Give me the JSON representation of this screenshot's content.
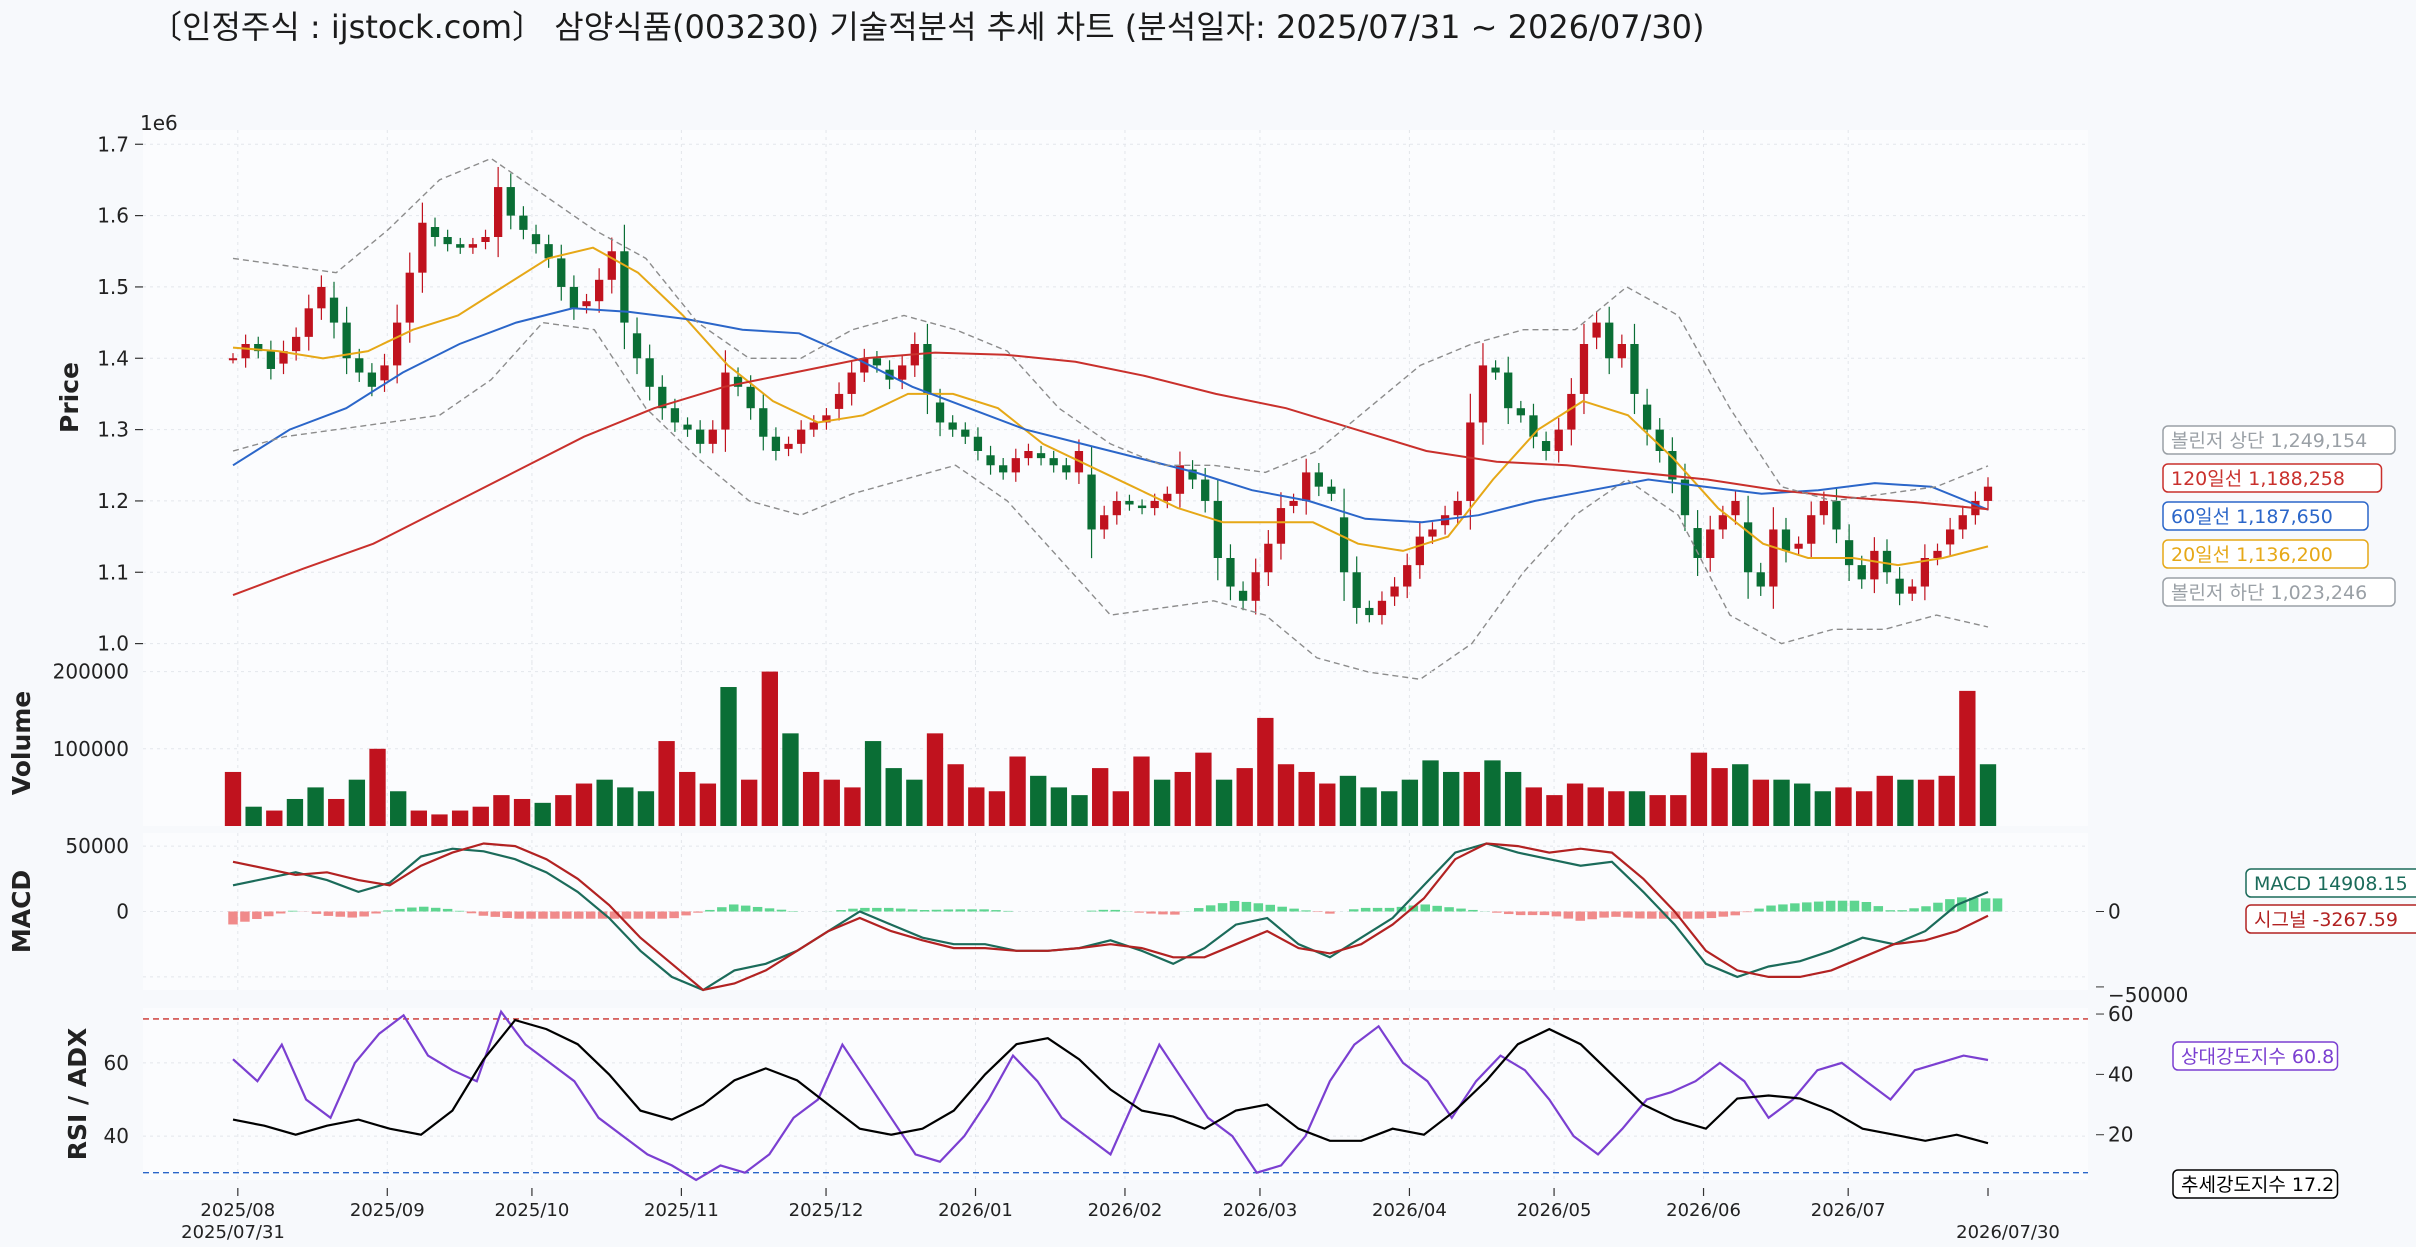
{
  "title": "〔인정주식 : ijstock.com〕 삼양식품(003230) 기술적분석 추세 차트 (분석일자: 2025/07/31 ~ 2026/07/30)",
  "chart_data": [
    {
      "type": "candlestick",
      "name": "price",
      "ylabel": "Price",
      "scale_note": "1e6",
      "ylim": [
        970000,
        1720000
      ],
      "yticks": [
        {
          "v": 1000000,
          "label": "1.0"
        },
        {
          "v": 1100000,
          "label": "1.1"
        },
        {
          "v": 1200000,
          "label": "1.2"
        },
        {
          "v": 1300000,
          "label": "1.3"
        },
        {
          "v": 1400000,
          "label": "1.4"
        },
        {
          "v": 1500000,
          "label": "1.5"
        },
        {
          "v": 1600000,
          "label": "1.6"
        },
        {
          "v": 1700000,
          "label": "1.7"
        }
      ],
      "x_range": [
        "2025-07-31",
        "2026-07-30"
      ],
      "x_ticks": [
        {
          "date": "2025-08-01",
          "label": "2025/08"
        },
        {
          "date": "2025-09-01",
          "label": "2025/09"
        },
        {
          "date": "2025-10-01",
          "label": "2025/10"
        },
        {
          "date": "2025-11-01",
          "label": "2025/11"
        },
        {
          "date": "2025-12-01",
          "label": "2025/12"
        },
        {
          "date": "2026-01-01",
          "label": "2026/01"
        },
        {
          "date": "2026-02-01",
          "label": "2026/02"
        },
        {
          "date": "2026-03-01",
          "label": "2026/03"
        },
        {
          "date": "2026-04-01",
          "label": "2026/04"
        },
        {
          "date": "2026-05-01",
          "label": "2026/05"
        },
        {
          "date": "2026-06-01",
          "label": "2026/06"
        },
        {
          "date": "2026-07-01",
          "label": "2026/07"
        }
      ],
      "x_edge_labels": {
        "start": "2025/07/31",
        "end": "2026/07/30"
      },
      "close": [
        1400000,
        1420000,
        1410000,
        1385000,
        1410000,
        1430000,
        1470000,
        1500000,
        1450000,
        1400000,
        1380000,
        1360000,
        1390000,
        1450000,
        1520000,
        1590000,
        1570000,
        1560000,
        1555000,
        1560000,
        1570000,
        1640000,
        1600000,
        1580000,
        1560000,
        1540000,
        1500000,
        1470000,
        1480000,
        1510000,
        1550000,
        1450000,
        1400000,
        1360000,
        1330000,
        1310000,
        1300000,
        1280000,
        1300000,
        1380000,
        1360000,
        1330000,
        1290000,
        1270000,
        1280000,
        1300000,
        1310000,
        1320000,
        1350000,
        1380000,
        1400000,
        1390000,
        1370000,
        1390000,
        1420000,
        1350000,
        1310000,
        1300000,
        1290000,
        1270000,
        1250000,
        1240000,
        1260000,
        1270000,
        1260000,
        1250000,
        1240000,
        1270000,
        1160000,
        1180000,
        1200000,
        1195000,
        1190000,
        1200000,
        1210000,
        1250000,
        1230000,
        1200000,
        1120000,
        1080000,
        1060000,
        1100000,
        1140000,
        1190000,
        1200000,
        1240000,
        1220000,
        1210000,
        1100000,
        1050000,
        1040000,
        1060000,
        1080000,
        1110000,
        1150000,
        1160000,
        1180000,
        1200000,
        1310000,
        1390000,
        1380000,
        1330000,
        1320000,
        1290000,
        1270000,
        1300000,
        1350000,
        1420000,
        1450000,
        1400000,
        1420000,
        1350000,
        1300000,
        1270000,
        1230000,
        1180000,
        1120000,
        1160000,
        1180000,
        1200000,
        1100000,
        1080000,
        1160000,
        1130000,
        1140000,
        1180000,
        1200000,
        1160000,
        1110000,
        1090000,
        1130000,
        1100000,
        1070000,
        1080000,
        1120000,
        1130000,
        1160000,
        1180000,
        1200000,
        1220000
      ],
      "series": [
        {
          "name": "20일선",
          "color": "#e6a817",
          "values": [
            1415000,
            1410000,
            1400000,
            1410000,
            1440000,
            1460000,
            1500000,
            1540000,
            1555000,
            1520000,
            1460000,
            1390000,
            1340000,
            1310000,
            1320000,
            1350000,
            1350000,
            1330000,
            1280000,
            1250000,
            1220000,
            1190000,
            1170000,
            1170000,
            1170000,
            1140000,
            1130000,
            1150000,
            1230000,
            1300000,
            1340000,
            1320000,
            1260000,
            1190000,
            1140000,
            1120000,
            1120000,
            1110000,
            1120000,
            1136200
          ]
        },
        {
          "name": "60일선",
          "color": "#2b66c9",
          "values": [
            1250000,
            1300000,
            1330000,
            1380000,
            1420000,
            1450000,
            1470000,
            1465000,
            1455000,
            1440000,
            1435000,
            1400000,
            1360000,
            1330000,
            1300000,
            1280000,
            1260000,
            1240000,
            1215000,
            1200000,
            1175000,
            1170000,
            1180000,
            1200000,
            1215000,
            1230000,
            1220000,
            1210000,
            1215000,
            1225000,
            1220000,
            1187650
          ]
        },
        {
          "name": "120일선",
          "color": "#c9302c",
          "values": [
            1068000,
            1105000,
            1140000,
            1190000,
            1240000,
            1290000,
            1330000,
            1360000,
            1380000,
            1400000,
            1408000,
            1405000,
            1395000,
            1375000,
            1350000,
            1330000,
            1300000,
            1270000,
            1255000,
            1250000,
            1240000,
            1230000,
            1215000,
            1205000,
            1198000,
            1188258
          ]
        },
        {
          "name": "볼린저 상단",
          "color": "#8c8c8c",
          "values": [
            1540000,
            1530000,
            1520000,
            1580000,
            1650000,
            1680000,
            1630000,
            1580000,
            1540000,
            1450000,
            1400000,
            1400000,
            1440000,
            1460000,
            1440000,
            1410000,
            1330000,
            1280000,
            1250000,
            1250000,
            1240000,
            1270000,
            1330000,
            1390000,
            1420000,
            1440000,
            1440000,
            1500000,
            1460000,
            1330000,
            1220000,
            1200000,
            1210000,
            1220000,
            1249154
          ]
        },
        {
          "name": "볼린저 하단",
          "color": "#8c8c8c",
          "values": [
            1270000,
            1290000,
            1300000,
            1310000,
            1320000,
            1370000,
            1450000,
            1440000,
            1330000,
            1260000,
            1200000,
            1180000,
            1210000,
            1230000,
            1250000,
            1200000,
            1120000,
            1040000,
            1050000,
            1060000,
            1040000,
            980000,
            960000,
            950000,
            1000000,
            1100000,
            1180000,
            1230000,
            1180000,
            1040000,
            1000000,
            1020000,
            1020000,
            1040000,
            1023246
          ]
        }
      ],
      "legend": [
        {
          "label": "볼린저 상단 1,249,154",
          "color": "#9aa0a6"
        },
        {
          "label": "120일선 1,188,258",
          "color": "#c9302c"
        },
        {
          "label": "60일선 1,187,650",
          "color": "#2b66c9"
        },
        {
          "label": "20일선 1,136,200",
          "color": "#e6a817"
        },
        {
          "label": "볼린저 하단 1,023,246",
          "color": "#9aa0a6"
        }
      ],
      "up_color": "#c0121e",
      "down_color": "#0a6e35",
      "grid": true
    },
    {
      "type": "bar",
      "name": "volume",
      "ylabel": "Volume",
      "ylim": [
        0,
        215000
      ],
      "yticks": [
        {
          "v": 100000,
          "label": "100000"
        },
        {
          "v": 200000,
          "label": "200000"
        }
      ],
      "values": [
        70000,
        25000,
        20000,
        35000,
        50000,
        35000,
        60000,
        100000,
        45000,
        20000,
        15000,
        20000,
        25000,
        40000,
        35000,
        30000,
        40000,
        55000,
        60000,
        50000,
        45000,
        110000,
        70000,
        55000,
        180000,
        60000,
        200000,
        120000,
        70000,
        60000,
        50000,
        110000,
        75000,
        60000,
        120000,
        80000,
        50000,
        45000,
        90000,
        65000,
        50000,
        40000,
        75000,
        45000,
        90000,
        60000,
        70000,
        95000,
        60000,
        75000,
        140000,
        80000,
        70000,
        55000,
        65000,
        50000,
        45000,
        60000,
        85000,
        70000,
        70000,
        85000,
        70000,
        50000,
        40000,
        55000,
        50000,
        45000,
        45000,
        40000,
        40000,
        95000,
        75000,
        80000,
        60000,
        60000,
        55000,
        45000,
        50000,
        45000,
        65000,
        60000,
        60000,
        65000,
        175000,
        80000
      ],
      "up_color": "#c0121e",
      "down_color": "#0a6e35"
    },
    {
      "type": "line",
      "name": "macd",
      "ylabel": "MACD",
      "ylim": [
        -60000,
        60000
      ],
      "yticks": [
        {
          "v": -50000,
          "label": "−50000"
        },
        {
          "v": 0,
          "label": "0"
        },
        {
          "v": 50000,
          "label": "50000"
        }
      ],
      "series": [
        {
          "name": "MACD",
          "color": "#1b6b5a",
          "values": [
            20000,
            25000,
            30000,
            24000,
            15000,
            22000,
            42000,
            48000,
            46000,
            40000,
            30000,
            15000,
            -5000,
            -30000,
            -50000,
            -60000,
            -45000,
            -40000,
            -30000,
            -15000,
            0,
            -10000,
            -20000,
            -25000,
            -25000,
            -30000,
            -30000,
            -28000,
            -22000,
            -30000,
            -40000,
            -28000,
            -10000,
            -5000,
            -25000,
            -35000,
            -20000,
            -5000,
            20000,
            45000,
            52000,
            45000,
            40000,
            35000,
            38000,
            15000,
            -10000,
            -40000,
            -50000,
            -42000,
            -38000,
            -30000,
            -20000,
            -25000,
            -15000,
            5000,
            14908
          ]
        },
        {
          "name": "시그널",
          "color": "#b22222",
          "values": [
            38000,
            33000,
            28000,
            30000,
            24000,
            20000,
            35000,
            45000,
            52000,
            50000,
            40000,
            25000,
            5000,
            -20000,
            -40000,
            -60000,
            -55000,
            -45000,
            -30000,
            -15000,
            -5000,
            -15000,
            -22000,
            -28000,
            -28000,
            -30000,
            -30000,
            -28000,
            -25000,
            -28000,
            -35000,
            -35000,
            -25000,
            -15000,
            -28000,
            -32000,
            -25000,
            -10000,
            10000,
            40000,
            52000,
            50000,
            45000,
            48000,
            45000,
            25000,
            0,
            -30000,
            -45000,
            -50000,
            -50000,
            -45000,
            -35000,
            -25000,
            -22000,
            -15000,
            -3267
          ]
        }
      ],
      "histogram_note": "MACD - 시그널",
      "legend": [
        {
          "label": "MACD 14908.15",
          "color": "#1b6b5a"
        },
        {
          "label": "시그널 -3267.59",
          "color": "#b22222"
        }
      ],
      "hist_pos_color": "#5dd590",
      "hist_neg_color": "#f08a8a"
    },
    {
      "type": "line",
      "name": "rsi_adx",
      "ylabel": "RSI / ADX",
      "ylim_left": [
        28,
        75
      ],
      "yticks_left": [
        {
          "v": 40,
          "label": "40"
        },
        {
          "v": 60,
          "label": "60"
        }
      ],
      "ylim_right": [
        5,
        62
      ],
      "yticks_right": [
        {
          "v": 20,
          "label": "20"
        },
        {
          "v": 40,
          "label": "40"
        },
        {
          "v": 60,
          "label": "60"
        }
      ],
      "reference_lines": [
        {
          "v": 72,
          "axis": "left",
          "color": "#c9302c"
        },
        {
          "v": 30,
          "axis": "left",
          "color": "#2b66c9"
        }
      ],
      "series": [
        {
          "name": "상대강도지수",
          "axis": "left",
          "color": "#7b3fd1",
          "values": [
            61,
            55,
            65,
            50,
            45,
            60,
            68,
            73,
            62,
            58,
            55,
            74,
            65,
            60,
            55,
            45,
            40,
            35,
            32,
            28,
            32,
            30,
            35,
            45,
            50,
            65,
            55,
            45,
            35,
            33,
            40,
            50,
            62,
            55,
            45,
            40,
            35,
            50,
            65,
            55,
            45,
            40,
            30,
            32,
            40,
            55,
            65,
            70,
            60,
            55,
            45,
            55,
            62,
            58,
            50,
            40,
            35,
            42,
            50,
            52,
            55,
            60,
            55,
            45,
            50,
            58,
            60,
            55,
            50,
            58,
            60,
            62,
            60.8
          ]
        },
        {
          "name": "추세강도지수",
          "axis": "right",
          "color": "#000000",
          "values": [
            25,
            23,
            20,
            23,
            25,
            22,
            20,
            28,
            45,
            58,
            55,
            50,
            40,
            28,
            25,
            30,
            38,
            42,
            38,
            30,
            22,
            20,
            22,
            28,
            40,
            50,
            52,
            45,
            35,
            28,
            26,
            22,
            28,
            30,
            22,
            18,
            18,
            22,
            20,
            28,
            38,
            50,
            55,
            50,
            40,
            30,
            25,
            22,
            32,
            33,
            32,
            28,
            22,
            20,
            18,
            20,
            17.2
          ]
        }
      ],
      "legend": [
        {
          "label": "상대강도지수 60.8",
          "color": "#7b3fd1"
        },
        {
          "label": "추세강도지수 17.2",
          "color": "#000000"
        }
      ]
    }
  ]
}
